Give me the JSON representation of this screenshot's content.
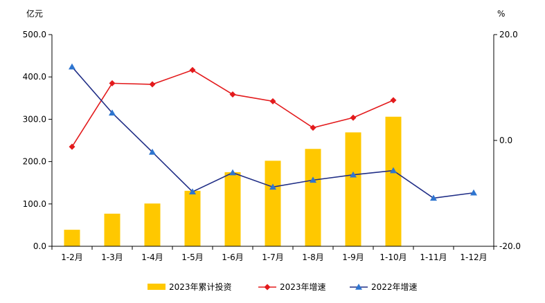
{
  "chart_data": {
    "type": "bar+line",
    "categories": [
      "1-2月",
      "1-3月",
      "1-4月",
      "1-5月",
      "1-6月",
      "1-7月",
      "1-8月",
      "1-9月",
      "1-10月",
      "1-11月",
      "1-12月"
    ],
    "y_left": {
      "unit": "亿元",
      "min": 0,
      "max": 500,
      "ticks": [
        "0.0",
        "100.0",
        "200.0",
        "300.0",
        "400.0",
        "500.0"
      ]
    },
    "y_right": {
      "unit": "%",
      "min": -20,
      "max": 20,
      "ticks": [
        "-20.0",
        "0.0",
        "20.0"
      ]
    },
    "series": [
      {
        "name": "2023年累计投资",
        "type": "bar",
        "axis": "left",
        "color": "#FFC800",
        "values": [
          39,
          77,
          101,
          131,
          175,
          202,
          230,
          269,
          306,
          null,
          null
        ]
      },
      {
        "name": "2023年增速",
        "type": "line",
        "axis": "right",
        "color": "#E31A1C",
        "marker": "diamond",
        "values": [
          -1.2,
          10.8,
          10.6,
          13.3,
          8.7,
          7.4,
          2.4,
          4.3,
          7.6,
          null,
          null
        ]
      },
      {
        "name": "2022年增速",
        "type": "line",
        "axis": "right",
        "color": "#1F2D86",
        "marker_color": "#2E75D0",
        "marker": "triangle",
        "values": [
          13.9,
          5.2,
          -2.2,
          -9.7,
          -6.1,
          -8.8,
          -7.5,
          -6.5,
          -5.7,
          -10.9,
          -9.9
        ]
      }
    ],
    "legend_position": "bottom",
    "grid": false
  }
}
